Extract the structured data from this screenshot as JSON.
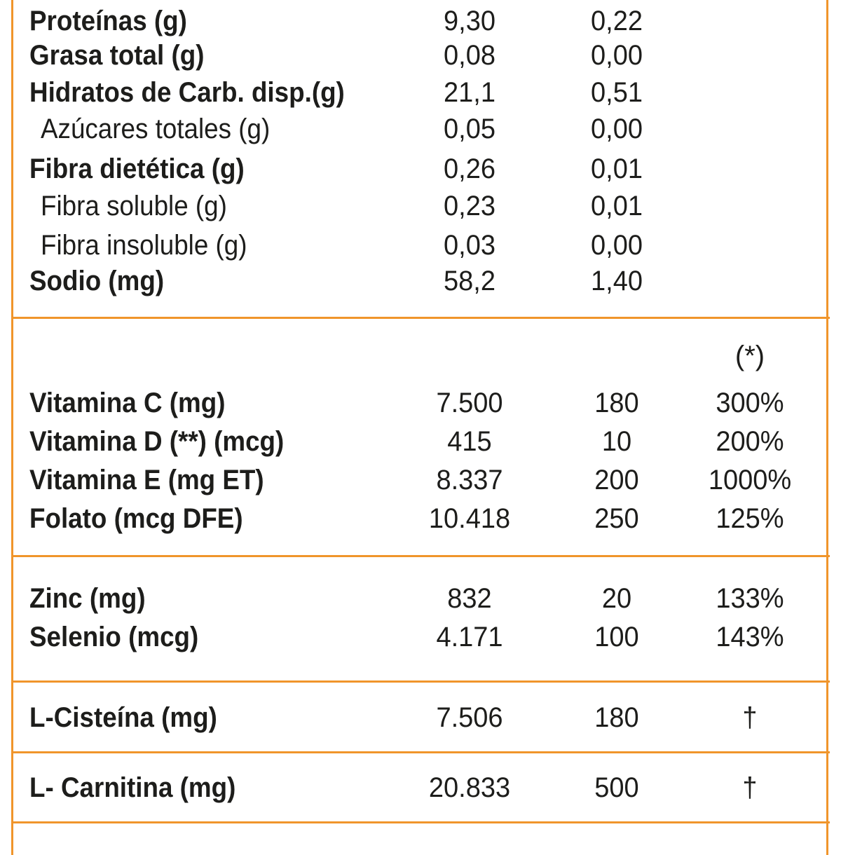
{
  "brand_color": "#f0952b",
  "text_color": "#1d1d1b",
  "macros": [
    {
      "name": "Proteínas (g)",
      "v1": "9,30",
      "v2": "0,22",
      "sub": false
    },
    {
      "name": "Grasa total (g)",
      "v1": "0,08",
      "v2": "0,00",
      "sub": false
    },
    {
      "name": "Hidratos de Carb. disp.(g)",
      "v1": "21,1",
      "v2": "0,51",
      "sub": false
    },
    {
      "name": "Azúcares totales (g)",
      "v1": "0,05",
      "v2": "0,00",
      "sub": true
    },
    {
      "name": "Fibra dietética (g)",
      "v1": "0,26",
      "v2": "0,01",
      "sub": false
    },
    {
      "name": "Fibra soluble (g)",
      "v1": "0,23",
      "v2": "0,01",
      "sub": true
    },
    {
      "name": "Fibra insoluble (g)",
      "v1": "0,03",
      "v2": "0,00",
      "sub": true
    },
    {
      "name": "Sodio (mg)",
      "v1": "58,2",
      "v2": "1,40",
      "sub": false
    }
  ],
  "vitamins_header": "(*)",
  "vitamins": [
    {
      "name": "Vitamina C (mg)",
      "v1": "7.500",
      "v2": "180",
      "v3": "300%"
    },
    {
      "name": "Vitamina D (**) (mcg)",
      "v1": "415",
      "v2": "10",
      "v3": "200%"
    },
    {
      "name": "Vitamina E (mg ET)",
      "v1": "8.337",
      "v2": "200",
      "v3": "1000%"
    },
    {
      "name": "Folato (mcg DFE)",
      "v1": "10.418",
      "v2": "250",
      "v3": "125%"
    }
  ],
  "minerals": [
    {
      "name": "Zinc (mg)",
      "v1": "832",
      "v2": "20",
      "v3": "133%"
    },
    {
      "name": "Selenio (mcg)",
      "v1": "4.171",
      "v2": "100",
      "v3": "143%"
    }
  ],
  "cysteine": [
    {
      "name": "L-Cisteína (mg)",
      "v1": "7.506",
      "v2": "180",
      "v3": "†"
    }
  ],
  "carnitine": [
    {
      "name": "L- Carnitina (mg)",
      "v1": "20.833",
      "v2": "500",
      "v3": "†"
    }
  ]
}
